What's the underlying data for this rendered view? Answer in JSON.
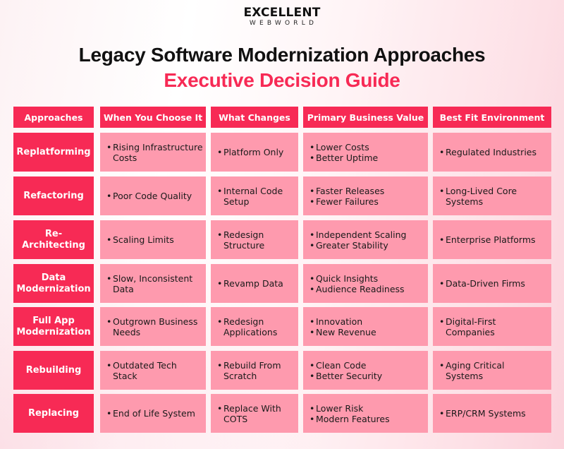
{
  "logo": {
    "main": "EXCELLENT",
    "sub": "WEBWORLD"
  },
  "title": "Legacy Software Modernization Approaches",
  "subtitle": "Executive Decision Guide",
  "colors": {
    "header_bg": "#f72a55",
    "approach_bg": "#f72a55",
    "cell_bg": "#fe9aae",
    "subtitle": "#f72a55",
    "title": "#111111"
  },
  "table": {
    "headers": [
      "Approaches",
      "When You Choose It",
      "What Changes",
      "Primary Business Value",
      "Best Fit Environment"
    ],
    "rows": [
      {
        "approach": "Replatforming",
        "when": [
          "Rising Infrastructure\nCosts"
        ],
        "changes": [
          "Platform Only"
        ],
        "value": [
          "Lower Costs",
          "Better Uptime"
        ],
        "fit": [
          "Regulated Industries"
        ]
      },
      {
        "approach": "Refactoring",
        "when": [
          "Poor Code Quality"
        ],
        "changes": [
          "Internal Code\nSetup"
        ],
        "value": [
          "Faster Releases",
          "Fewer Failures"
        ],
        "fit": [
          "Long-Lived Core\nSystems"
        ]
      },
      {
        "approach": "Re-Architecting",
        "when": [
          "Scaling Limits"
        ],
        "changes": [
          "Redesign\nStructure"
        ],
        "value": [
          "Independent Scaling",
          "Greater Stability"
        ],
        "fit": [
          "Enterprise Platforms"
        ]
      },
      {
        "approach": "Data\nModernization",
        "when": [
          "Slow, Inconsistent\nData"
        ],
        "changes": [
          "Revamp Data"
        ],
        "value": [
          "Quick Insights",
          "Audience Readiness"
        ],
        "fit": [
          "Data-Driven Firms"
        ]
      },
      {
        "approach": "Full App\nModernization",
        "when": [
          "Outgrown Business\nNeeds"
        ],
        "changes": [
          "Redesign\nApplications"
        ],
        "value": [
          "Innovation",
          "New Revenue"
        ],
        "fit": [
          "Digital-First\nCompanies"
        ]
      },
      {
        "approach": "Rebuilding",
        "when": [
          "Outdated Tech\nStack"
        ],
        "changes": [
          "Rebuild From\nScratch"
        ],
        "value": [
          "Clean Code",
          "Better Security"
        ],
        "fit": [
          "Aging Critical\nSystems"
        ]
      },
      {
        "approach": "Replacing",
        "when": [
          "End of Life System"
        ],
        "changes": [
          "Replace With\nCOTS"
        ],
        "value": [
          "Lower Risk",
          "Modern Features"
        ],
        "fit": [
          "ERP/CRM Systems"
        ]
      }
    ],
    "bullet": "•"
  }
}
